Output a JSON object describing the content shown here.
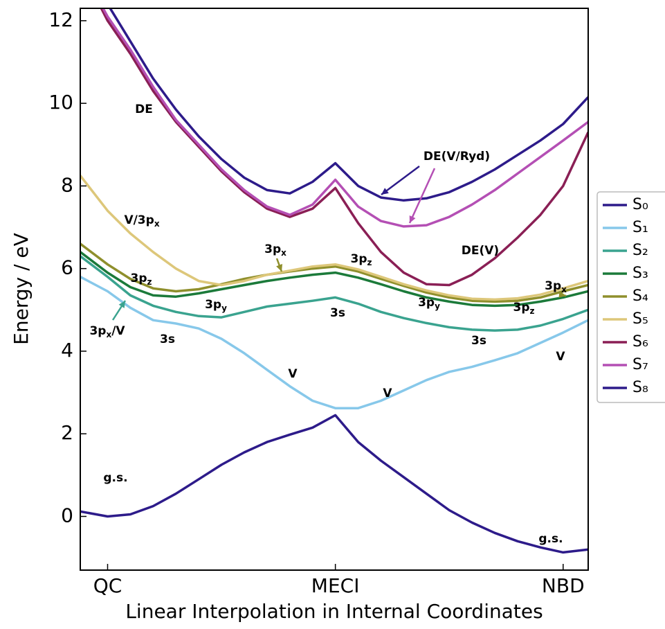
{
  "chart_data": {
    "type": "line",
    "xlabel": "Linear Interpolation in Internal Coordinates",
    "ylabel": "Energy / eV",
    "x": [
      -0.12,
      0,
      0.1,
      0.2,
      0.3,
      0.4,
      0.5,
      0.6,
      0.7,
      0.8,
      0.9,
      1.0,
      1.1,
      1.2,
      1.3,
      1.4,
      1.5,
      1.6,
      1.7,
      1.8,
      1.9,
      2.0,
      2.11
    ],
    "xlim": [
      -0.12,
      2.11
    ],
    "xticks": [
      {
        "value": 0,
        "label": "QC"
      },
      {
        "value": 1,
        "label": "MECI"
      },
      {
        "value": 2,
        "label": "NBD"
      }
    ],
    "ylim": [
      -1.3,
      12.3
    ],
    "yticks": [
      0,
      2,
      4,
      6,
      8,
      10,
      12
    ],
    "grid": false,
    "legend": "right",
    "series": [
      {
        "name": "S₀",
        "color": "#2d1b8a",
        "values": [
          0.12,
          0.0,
          0.05,
          0.25,
          0.55,
          0.9,
          1.25,
          1.55,
          1.8,
          1.98,
          2.15,
          2.45,
          1.8,
          1.35,
          0.95,
          0.55,
          0.15,
          -0.15,
          -0.4,
          -0.6,
          -0.75,
          -0.87,
          -0.8
        ]
      },
      {
        "name": "S₁",
        "color": "#87c8ea",
        "values": [
          5.8,
          5.45,
          5.05,
          4.75,
          4.67,
          4.55,
          4.3,
          3.95,
          3.55,
          3.15,
          2.8,
          2.62,
          2.62,
          2.8,
          3.05,
          3.3,
          3.5,
          3.62,
          3.78,
          3.95,
          4.2,
          4.45,
          4.75
        ]
      },
      {
        "name": "S₂",
        "color": "#3aa38f",
        "values": [
          6.3,
          5.8,
          5.35,
          5.1,
          4.95,
          4.85,
          4.82,
          4.95,
          5.08,
          5.15,
          5.22,
          5.3,
          5.15,
          4.95,
          4.8,
          4.68,
          4.58,
          4.52,
          4.5,
          4.52,
          4.62,
          4.78,
          5.0
        ]
      },
      {
        "name": "S₃",
        "color": "#1b7a3a",
        "values": [
          6.4,
          5.9,
          5.55,
          5.35,
          5.32,
          5.4,
          5.5,
          5.6,
          5.7,
          5.78,
          5.85,
          5.9,
          5.78,
          5.62,
          5.45,
          5.3,
          5.2,
          5.12,
          5.1,
          5.12,
          5.2,
          5.3,
          5.45
        ]
      },
      {
        "name": "S₄",
        "color": "#8f8f2c",
        "values": [
          6.6,
          6.1,
          5.75,
          5.52,
          5.45,
          5.5,
          5.62,
          5.75,
          5.85,
          5.93,
          6.0,
          6.05,
          5.93,
          5.75,
          5.58,
          5.42,
          5.3,
          5.22,
          5.2,
          5.22,
          5.3,
          5.45,
          5.6
        ]
      },
      {
        "name": "S₅",
        "color": "#ddc77a",
        "values": [
          8.25,
          7.4,
          6.85,
          6.4,
          6.0,
          5.7,
          5.6,
          5.7,
          5.85,
          5.95,
          6.05,
          6.1,
          5.98,
          5.8,
          5.62,
          5.47,
          5.35,
          5.27,
          5.25,
          5.28,
          5.37,
          5.52,
          5.7
        ]
      },
      {
        "name": "S₆",
        "color": "#8a1f55",
        "values": [
          13.3,
          12.0,
          11.2,
          10.3,
          9.55,
          8.95,
          8.35,
          7.85,
          7.45,
          7.25,
          7.45,
          7.95,
          7.1,
          6.4,
          5.9,
          5.62,
          5.6,
          5.85,
          6.25,
          6.75,
          7.3,
          8.0,
          9.3
        ]
      },
      {
        "name": "S₇",
        "color": "#b44fb4",
        "values": [
          13.3,
          12.1,
          11.3,
          10.4,
          9.6,
          9.0,
          8.4,
          7.9,
          7.5,
          7.3,
          7.55,
          8.15,
          7.5,
          7.15,
          7.02,
          7.05,
          7.25,
          7.55,
          7.9,
          8.3,
          8.7,
          9.1,
          9.55
        ]
      },
      {
        "name": "S₈",
        "color": "#2d1b8a",
        "values": [
          13.5,
          12.4,
          11.5,
          10.6,
          9.85,
          9.2,
          8.65,
          8.2,
          7.9,
          7.82,
          8.1,
          8.55,
          8.0,
          7.72,
          7.65,
          7.7,
          7.85,
          8.1,
          8.4,
          8.75,
          9.1,
          9.5,
          10.15
        ]
      }
    ],
    "annotations": [
      {
        "segments": [
          {
            "text": "DE"
          }
        ],
        "color": "#8a1f55"
      },
      {
        "segments": [
          {
            "text": "DE(V/Ryd)"
          }
        ],
        "color": "#2d1b8a"
      },
      {
        "segments": [
          {
            "text": "DE(V)"
          }
        ],
        "color": "#8a1f55"
      },
      {
        "segments": [
          {
            "text": "V/3p"
          },
          {
            "sub": "x"
          }
        ],
        "color": "#ddc77a"
      },
      {
        "segments": [
          {
            "text": "3p"
          },
          {
            "sub": "x"
          }
        ],
        "color": "#8f8f2c"
      },
      {
        "segments": [
          {
            "text": "3p"
          },
          {
            "sub": "z"
          }
        ],
        "color": "#ddc77a"
      },
      {
        "segments": [
          {
            "text": "3p"
          },
          {
            "sub": "x"
          }
        ],
        "color": "#8f8f2c"
      },
      {
        "segments": [
          {
            "text": "3p"
          },
          {
            "sub": "z"
          }
        ],
        "color": "#ddc77a"
      },
      {
        "segments": [
          {
            "text": "3p"
          },
          {
            "sub": "z"
          }
        ],
        "color": "#8f8f2c"
      },
      {
        "segments": [
          {
            "text": "3p"
          },
          {
            "sub": "y"
          }
        ],
        "color": "#1b7a3a"
      },
      {
        "segments": [
          {
            "text": "3p"
          },
          {
            "sub": "y"
          }
        ],
        "color": "#1b7a3a"
      },
      {
        "segments": [
          {
            "text": "3s"
          }
        ],
        "color": "#3aa38f"
      },
      {
        "segments": [
          {
            "text": "3s"
          }
        ],
        "color": "#3aa38f"
      },
      {
        "segments": [
          {
            "text": "3p"
          },
          {
            "sub": "x"
          },
          {
            "text": "/V"
          }
        ],
        "color": "#3aa38f"
      },
      {
        "segments": [
          {
            "text": "3s"
          }
        ],
        "color": "#87c8ea"
      },
      {
        "segments": [
          {
            "text": "V"
          }
        ],
        "color": "#87c8ea"
      },
      {
        "segments": [
          {
            "text": "V"
          }
        ],
        "color": "#87c8ea"
      },
      {
        "segments": [
          {
            "text": "V"
          }
        ],
        "color": "#87c8ea"
      },
      {
        "segments": [
          {
            "text": "g.s."
          }
        ],
        "color": "#2d1b8a"
      },
      {
        "segments": [
          {
            "text": "g.s."
          }
        ],
        "color": "#2d1b8a"
      }
    ]
  }
}
